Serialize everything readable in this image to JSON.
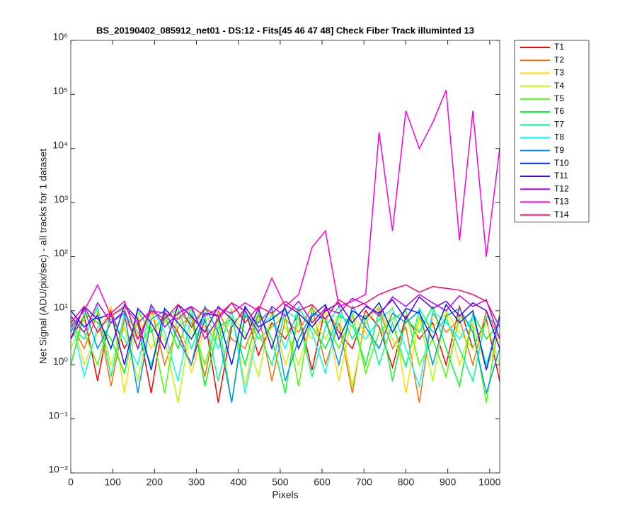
{
  "chart_data": {
    "type": "line",
    "title": "BS_20190402_085912_net01 - DS:12 - Fits[45  46  47  48]   Check Fiber     Track illuminted 13",
    "xlabel": "Pixels",
    "ylabel": "Net Signal (ADU/pix/sec) - all tracks for 1 dataset",
    "log_y": true,
    "xlim": [
      0,
      1024
    ],
    "ylim": [
      0.01,
      1000000
    ],
    "xticks": [
      0,
      100,
      200,
      300,
      400,
      500,
      600,
      700,
      800,
      900,
      1000
    ],
    "yticks": [
      {
        "value": 0.01,
        "label": "10⁻²"
      },
      {
        "value": 0.1,
        "label": "10⁻¹"
      },
      {
        "value": 1,
        "label": "10⁰"
      },
      {
        "value": 10,
        "label": "10¹"
      },
      {
        "value": 100,
        "label": "10²"
      },
      {
        "value": 1000,
        "label": "10³"
      },
      {
        "value": 10000,
        "label": "10⁴"
      },
      {
        "value": 100000,
        "label": "10⁵"
      },
      {
        "value": 1000000,
        "label": "10⁶"
      }
    ],
    "legend": "outside-right",
    "x": [
      0,
      32,
      64,
      96,
      128,
      160,
      192,
      224,
      256,
      288,
      320,
      352,
      384,
      416,
      448,
      480,
      512,
      544,
      576,
      608,
      640,
      672,
      704,
      736,
      768,
      800,
      832,
      864,
      896,
      928,
      960,
      992,
      1024
    ],
    "series": [
      {
        "name": "T1",
        "color": "#ff0000",
        "values": [
          3,
          8,
          0.5,
          10,
          2,
          6,
          0.3,
          9,
          4,
          1,
          7,
          0.2,
          5,
          11,
          1.5,
          6,
          3,
          9,
          0.8,
          12,
          4,
          2,
          10,
          5,
          0.9,
          8,
          3,
          6,
          1,
          12,
          2,
          7,
          0.5
        ]
      },
      {
        "name": "T2",
        "color": "#ff6d00",
        "values": [
          6,
          2,
          9,
          0.4,
          7,
          3,
          11,
          1,
          5,
          8,
          0.6,
          10,
          3,
          2,
          9,
          0.5,
          7,
          4,
          12,
          1,
          6,
          0.3,
          8,
          11,
          2,
          5,
          0.2,
          9,
          4,
          7,
          1,
          10,
          3
        ]
      },
      {
        "name": "T3",
        "color": "#ffdb00",
        "values": [
          9,
          1,
          4,
          12,
          0.3,
          8,
          2,
          6,
          10,
          0.7,
          5,
          3,
          11,
          0.4,
          7,
          9,
          1,
          6,
          3,
          10,
          0.5,
          8,
          4,
          2,
          12,
          0.3,
          7,
          5,
          9,
          1,
          6,
          0.8,
          4
        ]
      },
      {
        "name": "T4",
        "color": "#b6ff00",
        "values": [
          2,
          7,
          10,
          1,
          5,
          0.5,
          9,
          3,
          0.2,
          6,
          11,
          2,
          8,
          4,
          0.6,
          10,
          5,
          1,
          7,
          3,
          9,
          0.4,
          6,
          12,
          3,
          1,
          8,
          0.5,
          10,
          4,
          2,
          6,
          1
        ]
      },
      {
        "name": "T5",
        "color": "#49ff00",
        "values": [
          7,
          4,
          1,
          8,
          11,
          2,
          5,
          0.3,
          9,
          6,
          1,
          7,
          0.2,
          10,
          3,
          5,
          8,
          0.4,
          11,
          6,
          2,
          9,
          0.7,
          4,
          7,
          10,
          1,
          3,
          0.6,
          8,
          5,
          0.2,
          9
        ]
      },
      {
        "name": "T6",
        "color": "#00ff24",
        "values": [
          1,
          9,
          6,
          3,
          0.7,
          10,
          4,
          8,
          2,
          12,
          0.4,
          5,
          7,
          1,
          9,
          3,
          0.3,
          11,
          5,
          2,
          8,
          6,
          1,
          10,
          0.5,
          7,
          4,
          12,
          2,
          0.4,
          9,
          3,
          6
        ]
      },
      {
        "name": "T7",
        "color": "#00ff92",
        "values": [
          5,
          3,
          12,
          0.6,
          9,
          4,
          1,
          7,
          11,
          2,
          8,
          0.5,
          6,
          9,
          4,
          1,
          10,
          7,
          0.6,
          5,
          12,
          3,
          8,
          1,
          6,
          0.9,
          11,
          4,
          7,
          2,
          0.5,
          8,
          5
        ]
      },
      {
        "name": "T8",
        "color": "#00ffff",
        "values": [
          8,
          0.6,
          5,
          7,
          3,
          1,
          12,
          4,
          0.5,
          9,
          6,
          2,
          10,
          0.3,
          5,
          8,
          2,
          12,
          4,
          0.7,
          9,
          5,
          3,
          7,
          11,
          2,
          0.4,
          10,
          6,
          3,
          8,
          1,
          7
        ]
      },
      {
        "name": "T9",
        "color": "#0092ff",
        "values": [
          4,
          11,
          2,
          6,
          9,
          0.3,
          7,
          10,
          3,
          1,
          12,
          4,
          0.2,
          8,
          6,
          11,
          0.5,
          3,
          9,
          7,
          1,
          12,
          5,
          2,
          9,
          6,
          10,
          1,
          8,
          11,
          4,
          0.3,
          2
        ]
      },
      {
        "name": "T10",
        "color": "#0024ff",
        "values": [
          10,
          5,
          8,
          2,
          13,
          7,
          0.8,
          11,
          6,
          3,
          9,
          8,
          1,
          12,
          5,
          7,
          11,
          2,
          8,
          13,
          3,
          10,
          7,
          14,
          4,
          11,
          9,
          3,
          13,
          6,
          10,
          0.8,
          8
        ]
      },
      {
        "name": "T11",
        "color": "#4900ff",
        "values": [
          3,
          12,
          7,
          9,
          1,
          11,
          6,
          2,
          13,
          8,
          4,
          12,
          7,
          3,
          11,
          2,
          13,
          9,
          5,
          10,
          14,
          6,
          12,
          9,
          16,
          7,
          18,
          11,
          15,
          8,
          14,
          10,
          2
        ]
      },
      {
        "name": "T12",
        "color": "#b600ff",
        "values": [
          8,
          4,
          14,
          6,
          10,
          2,
          13,
          5,
          9,
          12,
          3,
          7,
          14,
          10,
          4,
          12,
          8,
          15,
          6,
          11,
          9,
          17,
          13,
          8,
          18,
          12,
          20,
          14,
          10,
          19,
          12,
          16,
          3
        ]
      },
      {
        "name": "T13",
        "color": "#ff00db",
        "values": [
          5,
          10,
          30,
          8,
          12,
          6,
          10,
          9,
          7,
          12,
          8,
          11,
          9,
          14,
          10,
          40,
          12,
          20,
          150,
          300,
          12,
          15,
          20,
          20000,
          300,
          50000,
          10000,
          30000,
          120000,
          200,
          50000,
          100,
          10000
        ]
      },
      {
        "name": "T14",
        "color": "#ff006d",
        "values": [
          6,
          12,
          4,
          9,
          15,
          3,
          10,
          7,
          13,
          5,
          11,
          8,
          14,
          6,
          12,
          9,
          15,
          10,
          13,
          7,
          16,
          11,
          14,
          20,
          25,
          30,
          22,
          28,
          26,
          24,
          20,
          15,
          5
        ]
      }
    ]
  }
}
